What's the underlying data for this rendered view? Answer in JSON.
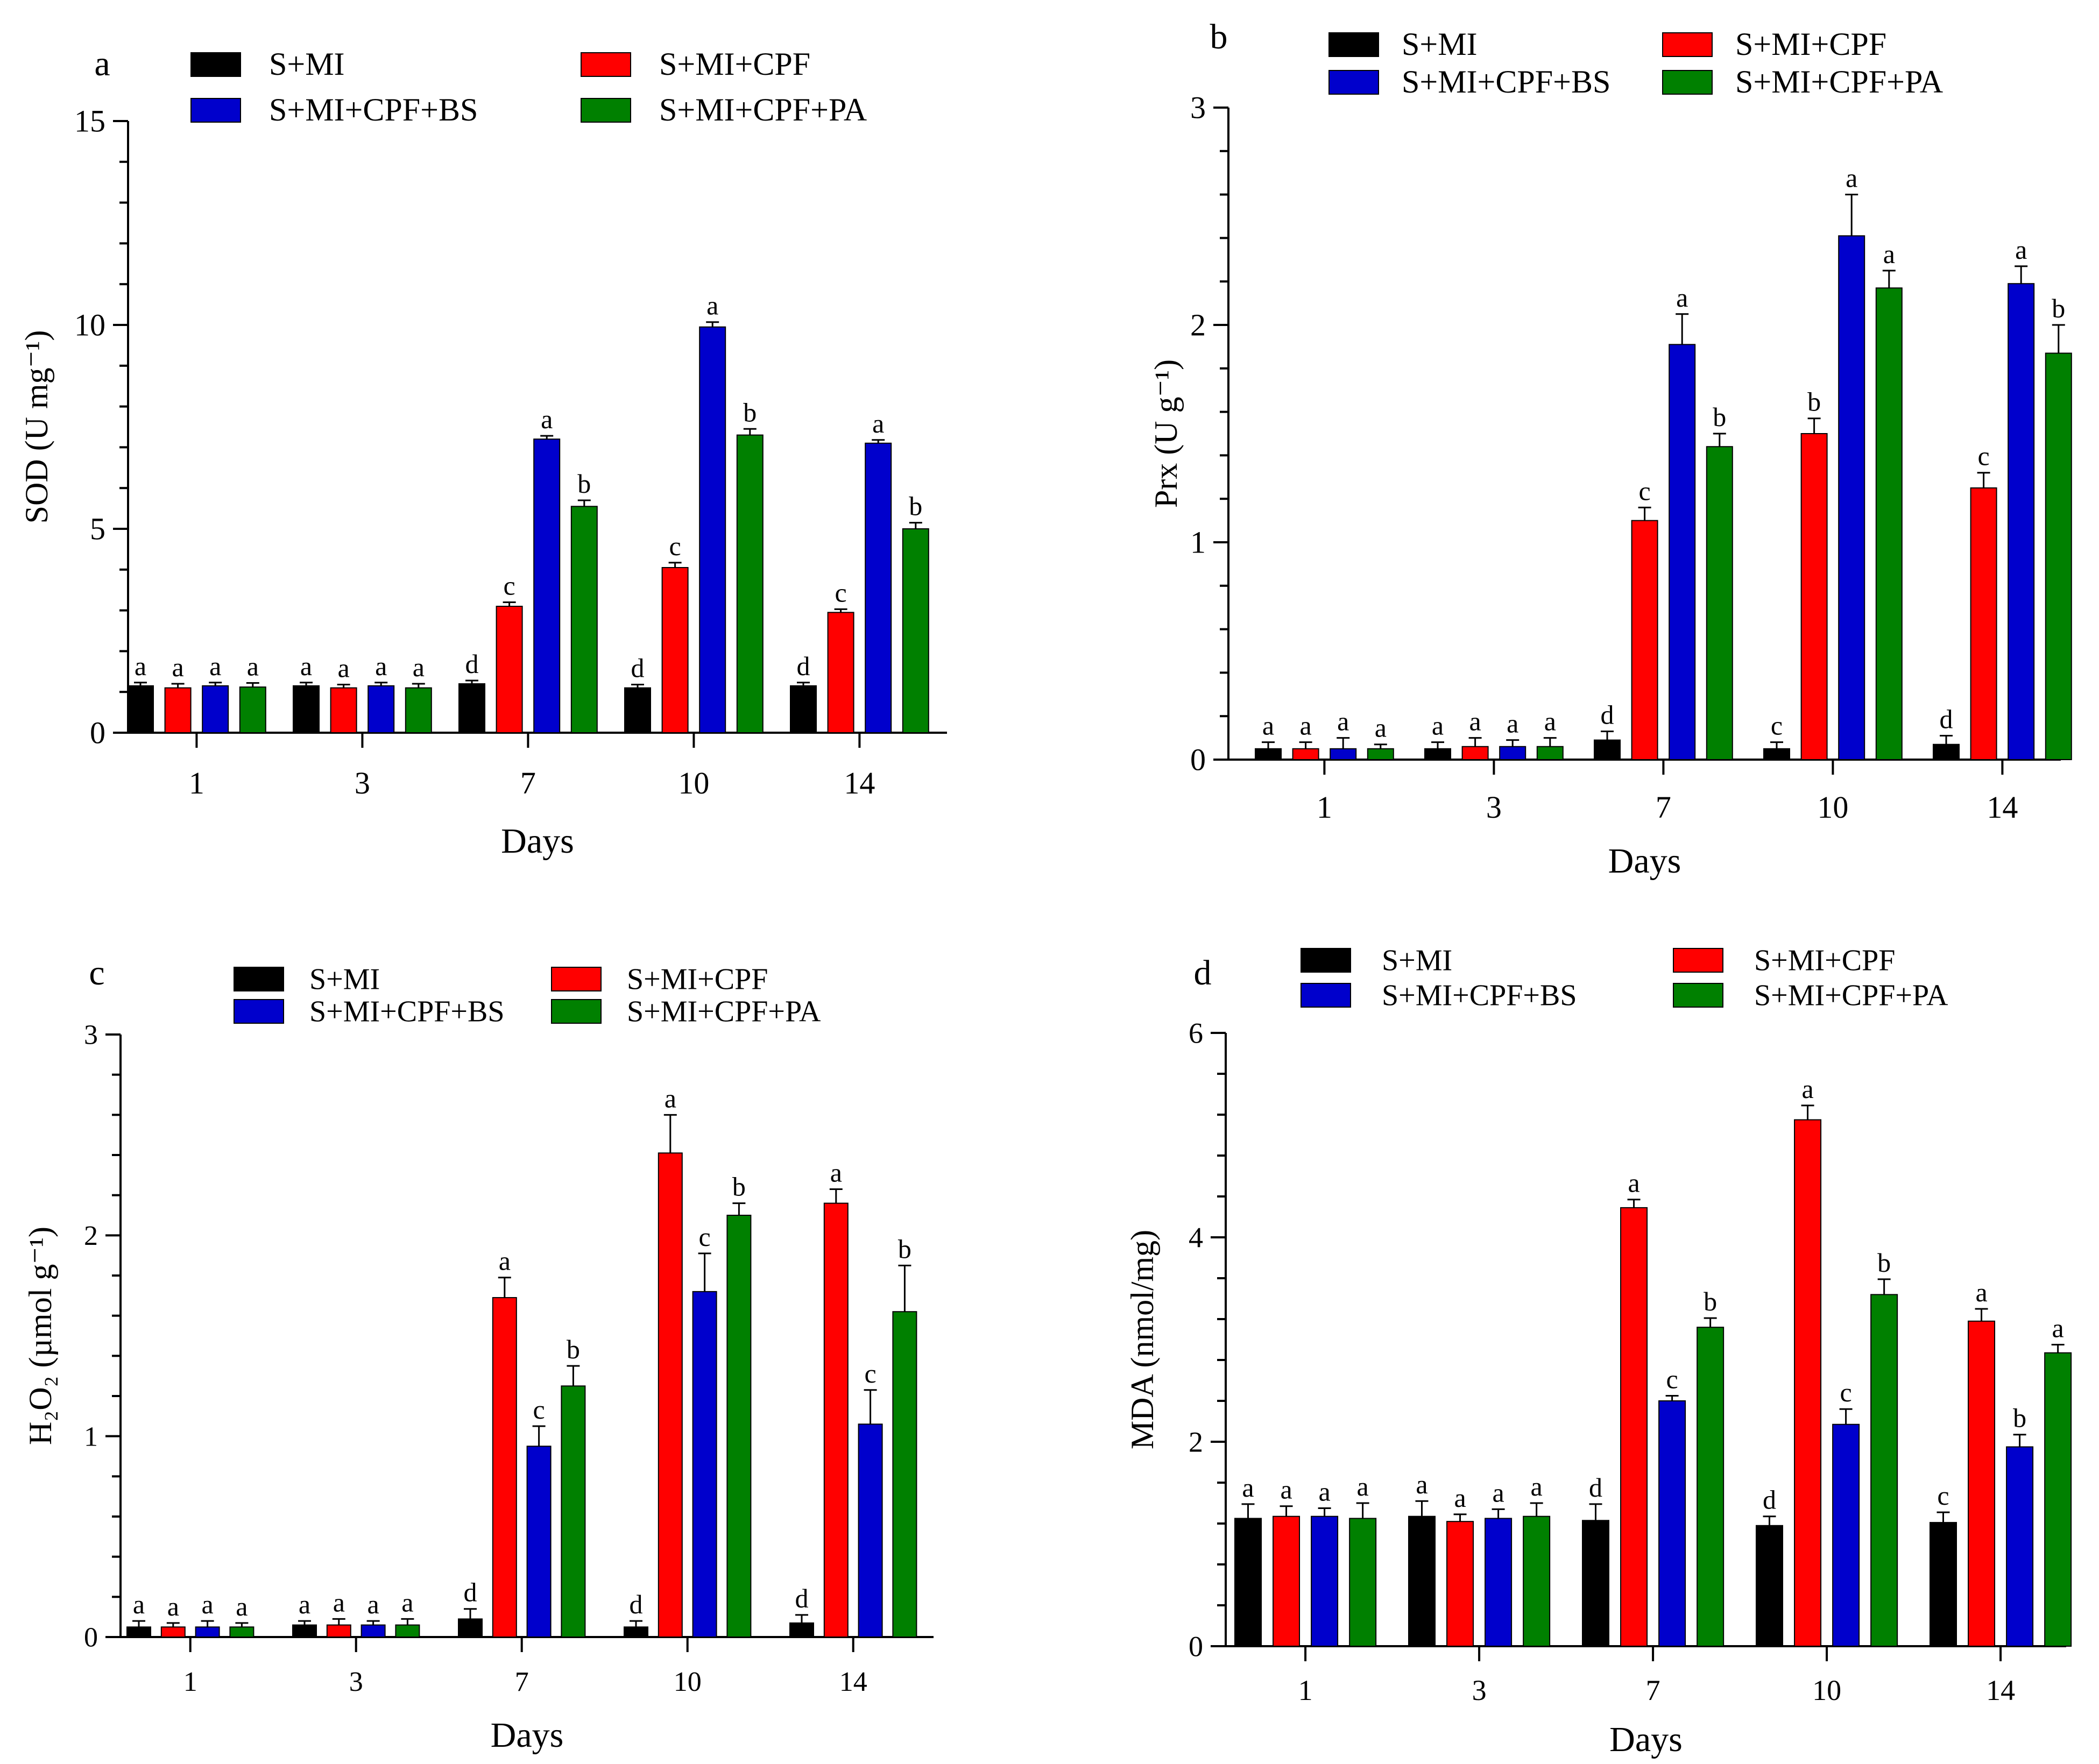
{
  "colors": {
    "S+MI": "#000000",
    "S+MI+CPF": "#ff0000",
    "S+MI+CPF+BS": "#0000cc",
    "S+MI+CPF+PA": "#008000"
  },
  "chart_data": [
    {
      "panel": "a",
      "type": "bar",
      "xlabel": "Days",
      "ylabel": "SOD (U mg⁻¹)",
      "ylim": [
        0,
        15
      ],
      "yticks": [
        0,
        5,
        10,
        15
      ],
      "categories": [
        "1",
        "3",
        "7",
        "10",
        "14"
      ],
      "legend_layout": [
        [
          "S+MI",
          "S+MI+CPF"
        ],
        [
          "S+MI+CPF+BS",
          "S+MI+CPF+PA"
        ]
      ],
      "series": [
        {
          "name": "S+MI",
          "values": [
            1.15,
            1.15,
            1.2,
            1.1,
            1.15
          ],
          "errors": [
            0.08,
            0.08,
            0.08,
            0.08,
            0.08
          ],
          "letters": [
            "a",
            "a",
            "d",
            "d",
            "d"
          ]
        },
        {
          "name": "S+MI+CPF",
          "values": [
            1.1,
            1.1,
            3.1,
            4.05,
            2.95
          ],
          "errors": [
            0.1,
            0.08,
            0.1,
            0.12,
            0.08
          ],
          "letters": [
            "a",
            "a",
            "c",
            "c",
            "c"
          ]
        },
        {
          "name": "S+MI+CPF+BS",
          "values": [
            1.15,
            1.15,
            7.2,
            9.95,
            7.1
          ],
          "errors": [
            0.08,
            0.08,
            0.08,
            0.12,
            0.08
          ],
          "letters": [
            "a",
            "a",
            "a",
            "a",
            "a"
          ]
        },
        {
          "name": "S+MI+CPF+PA",
          "values": [
            1.12,
            1.1,
            5.55,
            7.3,
            5.0
          ],
          "errors": [
            0.1,
            0.1,
            0.15,
            0.15,
            0.15
          ],
          "letters": [
            "a",
            "a",
            "b",
            "b",
            "b"
          ]
        }
      ]
    },
    {
      "panel": "b",
      "type": "bar",
      "xlabel": "Days",
      "ylabel": "Prx (U g⁻¹)",
      "ylim": [
        0,
        3
      ],
      "yticks": [
        0,
        1,
        2,
        3
      ],
      "categories": [
        "1",
        "3",
        "7",
        "10",
        "14"
      ],
      "legend_layout": [
        [
          "S+MI",
          "S+MI+CPF"
        ],
        [
          "S+MI+CPF+BS",
          "S+MI+CPF+PA"
        ]
      ],
      "series": [
        {
          "name": "S+MI",
          "values": [
            0.05,
            0.05,
            0.09,
            0.05,
            0.07
          ],
          "errors": [
            0.03,
            0.03,
            0.04,
            0.03,
            0.04
          ],
          "letters": [
            "a",
            "a",
            "d",
            "c",
            "d"
          ]
        },
        {
          "name": "S+MI+CPF",
          "values": [
            0.05,
            0.06,
            1.1,
            1.5,
            1.25
          ],
          "errors": [
            0.03,
            0.04,
            0.06,
            0.07,
            0.07
          ],
          "letters": [
            "a",
            "a",
            "c",
            "b",
            "c"
          ]
        },
        {
          "name": "S+MI+CPF+BS",
          "values": [
            0.05,
            0.06,
            1.91,
            2.41,
            2.19
          ],
          "errors": [
            0.05,
            0.03,
            0.14,
            0.19,
            0.08
          ],
          "letters": [
            "a",
            "a",
            "a",
            "a",
            "a"
          ]
        },
        {
          "name": "S+MI+CPF+PA",
          "values": [
            0.05,
            0.06,
            1.44,
            2.17,
            1.87
          ],
          "errors": [
            0.02,
            0.04,
            0.06,
            0.08,
            0.13
          ],
          "letters": [
            "a",
            "a",
            "b",
            "a",
            "b"
          ]
        }
      ]
    },
    {
      "panel": "c",
      "type": "bar",
      "xlabel": "Days",
      "ylabel": "H₂O₂ (µmol g⁻¹)",
      "ylim": [
        0,
        3
      ],
      "yticks": [
        0,
        1,
        2,
        3
      ],
      "categories": [
        "1",
        "3",
        "7",
        "10",
        "14"
      ],
      "legend_layout": [
        [
          "S+MI",
          "S+MI+CPF"
        ],
        [
          "S+MI+CPF+BS",
          "S+MI+CPF+PA"
        ]
      ],
      "series": [
        {
          "name": "S+MI",
          "values": [
            0.05,
            0.06,
            0.09,
            0.05,
            0.07
          ],
          "errors": [
            0.03,
            0.02,
            0.05,
            0.03,
            0.04
          ],
          "letters": [
            "a",
            "a",
            "d",
            "d",
            "d"
          ]
        },
        {
          "name": "S+MI+CPF",
          "values": [
            0.05,
            0.06,
            1.69,
            2.41,
            2.16
          ],
          "errors": [
            0.02,
            0.03,
            0.1,
            0.19,
            0.07
          ],
          "letters": [
            "a",
            "a",
            "a",
            "a",
            "a"
          ]
        },
        {
          "name": "S+MI+CPF+BS",
          "values": [
            0.05,
            0.06,
            0.95,
            1.72,
            1.06
          ],
          "errors": [
            0.03,
            0.02,
            0.1,
            0.19,
            0.17
          ],
          "letters": [
            "a",
            "a",
            "c",
            "c",
            "c"
          ]
        },
        {
          "name": "S+MI+CPF+PA",
          "values": [
            0.05,
            0.06,
            1.25,
            2.1,
            1.62
          ],
          "errors": [
            0.02,
            0.03,
            0.1,
            0.06,
            0.23
          ],
          "letters": [
            "a",
            "a",
            "b",
            "b",
            "b"
          ]
        }
      ]
    },
    {
      "panel": "d",
      "type": "bar",
      "xlabel": "Days",
      "ylabel": "MDA (nmol/mg)",
      "ylim": [
        0,
        6
      ],
      "yticks": [
        0,
        2,
        4,
        6
      ],
      "categories": [
        "1",
        "3",
        "7",
        "10",
        "14"
      ],
      "legend_layout": [
        [
          "S+MI",
          "S+MI+CPF"
        ],
        [
          "S+MI+CPF+BS",
          "S+MI+CPF+PA"
        ]
      ],
      "series": [
        {
          "name": "S+MI",
          "values": [
            1.25,
            1.27,
            1.23,
            1.18,
            1.21
          ],
          "errors": [
            0.14,
            0.15,
            0.16,
            0.09,
            0.1
          ],
          "letters": [
            "a",
            "a",
            "d",
            "d",
            "c"
          ]
        },
        {
          "name": "S+MI+CPF",
          "values": [
            1.27,
            1.22,
            4.29,
            5.15,
            3.18
          ],
          "errors": [
            0.1,
            0.07,
            0.08,
            0.14,
            0.12
          ],
          "letters": [
            "a",
            "a",
            "a",
            "a",
            "a"
          ]
        },
        {
          "name": "S+MI+CPF+BS",
          "values": [
            1.27,
            1.25,
            2.4,
            2.17,
            1.95
          ],
          "errors": [
            0.08,
            0.09,
            0.05,
            0.15,
            0.12
          ],
          "letters": [
            "a",
            "a",
            "c",
            "c",
            "b"
          ]
        },
        {
          "name": "S+MI+CPF+PA",
          "values": [
            1.25,
            1.27,
            3.12,
            3.44,
            2.87
          ],
          "errors": [
            0.15,
            0.13,
            0.09,
            0.15,
            0.08
          ],
          "letters": [
            "a",
            "a",
            "b",
            "b",
            "a"
          ]
        }
      ]
    }
  ]
}
